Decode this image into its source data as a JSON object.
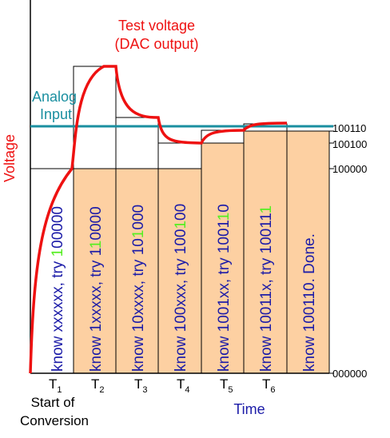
{
  "title": {
    "line1": "Test voltage",
    "line2": "(DAC output)"
  },
  "analog_input": {
    "line1": "Analog",
    "line2": "Input"
  },
  "y_axis_label": "Voltage",
  "x_axis_label": "Time",
  "start_label": {
    "line1": "Start of",
    "line2": "Conversion"
  },
  "level_labels": {
    "l100110": "100110",
    "l100100": "100100",
    "l100000": "100000",
    "l000000": "000000"
  },
  "time_labels": [
    {
      "base": "T",
      "sub": "1"
    },
    {
      "base": "T",
      "sub": "2"
    },
    {
      "base": "T",
      "sub": "3"
    },
    {
      "base": "T",
      "sub": "4"
    },
    {
      "base": "T",
      "sub": "5"
    },
    {
      "base": "T",
      "sub": "6"
    }
  ],
  "steps": [
    {
      "pre": "know xxxxxx, try ",
      "hl": "1",
      "post": "00000"
    },
    {
      "pre": "know 1xxxxx, try 1",
      "hl": "1",
      "post": "0000"
    },
    {
      "pre": "know 10xxxx, try 10",
      "hl": "1",
      "post": "000"
    },
    {
      "pre": "know 100xxx, try 100",
      "hl": "1",
      "post": "00"
    },
    {
      "pre": "know 1001xx, try 1001",
      "hl": "1",
      "post": "0"
    },
    {
      "pre": "know 10011x, try 10011",
      "hl": "1",
      "post": ""
    },
    {
      "pre": "know 100110. Done.",
      "hl": "",
      "post": ""
    }
  ],
  "colors": {
    "dac_curve": "#ee1111",
    "analog_line": "#1a8fa0",
    "step_fill": "#fdd0a2",
    "step_text": "#1c1ca8",
    "highlight": "#55ee22",
    "axis": "#000000"
  }
}
